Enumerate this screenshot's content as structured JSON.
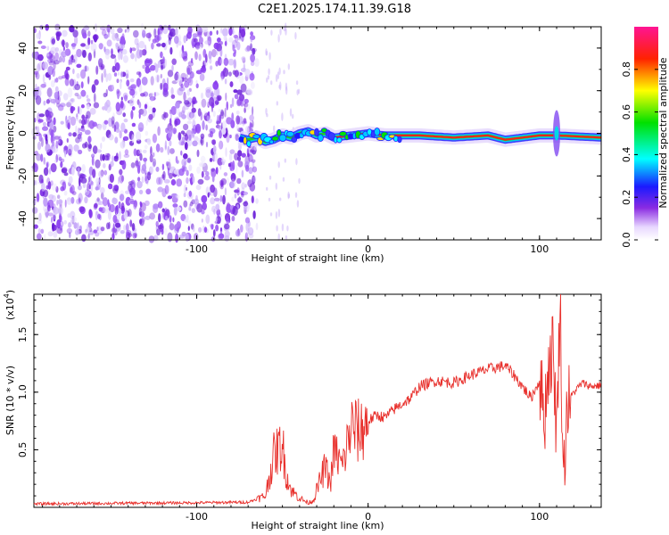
{
  "title": "C2E1.2025.174.11.39.G18",
  "chart_data": [
    {
      "type": "heatmap",
      "xlabel": "Height of straight line (km)",
      "ylabel": "Frequency (Hz)",
      "xlim": [
        -195,
        136
      ],
      "ylim": [
        -50,
        50
      ],
      "x_ticks": [
        -100,
        0,
        100
      ],
      "x_tick_labels": [
        "-100",
        "0",
        "100"
      ],
      "y_ticks": [
        -40,
        -20,
        0,
        20,
        40
      ],
      "y_tick_labels": [
        "-40",
        "-20",
        "0",
        "20",
        "40"
      ],
      "colorbar": {
        "label": "Normalized spectral amplitude",
        "range": [
          0,
          1
        ],
        "ticks": [
          0.0,
          0.2,
          0.4,
          0.6,
          0.8
        ],
        "tick_labels": [
          "0.0",
          "0.2",
          "0.4",
          "0.6",
          "0.8"
        ]
      },
      "ridge_trace": {
        "x": [
          -75,
          -70,
          -65,
          -60,
          -55,
          -50,
          -45,
          -40,
          -35,
          -30,
          -25,
          -20,
          -10,
          0,
          10,
          30,
          50,
          70,
          80,
          90,
          100,
          110,
          136
        ],
        "y": [
          -2,
          -3,
          -2,
          -4,
          -3,
          -1,
          -2,
          0,
          1,
          -1,
          0,
          -2,
          -1,
          0,
          -1,
          -1,
          -2,
          -1,
          -3,
          -2,
          -1,
          -1,
          -2
        ]
      },
      "noise_region_x": [
        -195,
        -70
      ]
    },
    {
      "type": "line",
      "xlabel": "Height of straight line (km)",
      "ylabel": "SNR (10 * v/v)",
      "y_multiplier_label": "(x10",
      "y_multiplier_exp": "4",
      "xlim": [
        -195,
        136
      ],
      "ylim": [
        0,
        18500
      ],
      "x_ticks": [
        -100,
        0,
        100
      ],
      "x_tick_labels": [
        "-100",
        "0",
        "100"
      ],
      "y_ticks": [
        5000,
        10000,
        15000
      ],
      "y_tick_labels": [
        "0.5",
        "1.0",
        "1.5"
      ],
      "color": "#e8302c",
      "series": [
        {
          "x": [
            -195,
            -150,
            -100,
            -70,
            -60,
            -55,
            -50,
            -48,
            -45,
            -40,
            -35,
            -32,
            -30,
            -25,
            -22,
            -20,
            -15,
            -10,
            -5,
            0,
            5,
            10,
            15,
            20,
            25,
            30,
            40,
            50,
            60,
            70,
            80,
            85,
            90,
            95,
            100,
            103,
            105,
            108,
            110,
            112,
            114,
            116,
            120,
            125,
            130,
            136
          ],
          "y": [
            300,
            350,
            400,
            450,
            1000,
            4500,
            5500,
            3000,
            1500,
            800,
            400,
            600,
            1500,
            3500,
            2000,
            5000,
            3500,
            7000,
            6500,
            7500,
            8000,
            7800,
            8500,
            9000,
            9500,
            10500,
            11000,
            10800,
            11500,
            12000,
            12300,
            11500,
            10500,
            9500,
            11000,
            8000,
            12000,
            14000,
            6000,
            18000,
            2000,
            9000,
            10000,
            10800,
            10500,
            10600
          ]
        }
      ]
    }
  ]
}
